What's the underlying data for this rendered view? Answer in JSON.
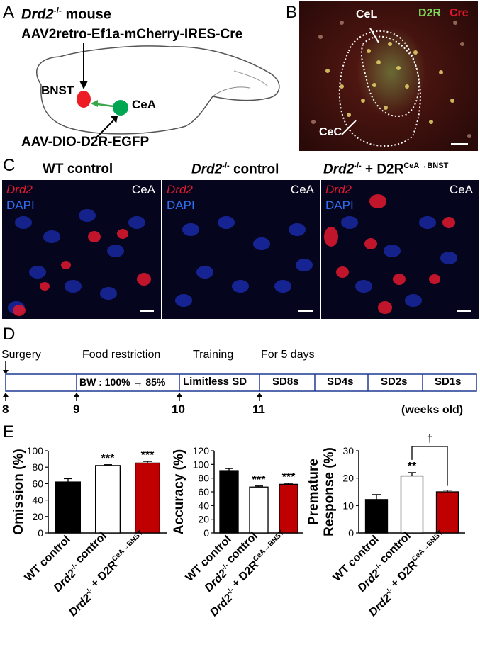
{
  "panels": {
    "A": "A",
    "B": "B",
    "C": "C",
    "D": "D",
    "E": "E"
  },
  "panelA": {
    "genotype": "Drd2",
    "genotype_sup": "-/-",
    "genotype_suffix": " mouse",
    "virus_top": "AAV2retro-Ef1a-mCherry-IRES-Cre",
    "bnst": "BNST",
    "cea": "CeA",
    "virus_bottom": "AAV-DIO-D2R-EGFP"
  },
  "panelB": {
    "label_d2r": "D2R",
    "label_cre": "Cre",
    "cel": "CeL",
    "cec": "CeC",
    "colors": {
      "d2r": "#7ed957",
      "cre": "#e2182e"
    }
  },
  "panelC": {
    "groups": [
      {
        "title_italic": "",
        "title_plain": "WT control",
        "title_sup": ""
      },
      {
        "title_italic": "Drd2",
        "title_sup": "-/-",
        "title_plain": " control"
      },
      {
        "title_italic": "Drd2",
        "title_sup": "-/-",
        "title_plain": " + D2R",
        "title_sup2": "CeA→BNST"
      }
    ],
    "stain1": "Drd2",
    "stain2": "DAPI",
    "region": "CeA",
    "colors": {
      "drd2": "#e2182e",
      "dapi": "#2f6ff0"
    }
  },
  "panelD": {
    "surgery": "Surgery",
    "food_restriction": "Food restriction",
    "training": "Training",
    "for_5_days": "For 5 days",
    "bw": "BW : 100% → 85%",
    "limitless": "Limitless SD",
    "stages": [
      "SD8s",
      "SD4s",
      "SD2s",
      "SD1s"
    ],
    "weeks": [
      "8",
      "9",
      "10",
      "11"
    ],
    "weeks_label": "(weeks old)",
    "border_color": "#1f3a93"
  },
  "panelE": {
    "groups": [
      "WT control",
      "Drd2-/- control",
      "Drd2-/- + D2R CeA→BNST"
    ],
    "group_labels": [
      {
        "italic": "",
        "sup": "",
        "plain": "WT control",
        "sup2": ""
      },
      {
        "italic": "Drd2",
        "sup": "-/-",
        "plain": " control",
        "sup2": ""
      },
      {
        "italic": "Drd2",
        "sup": "-/-",
        "plain": " + D2R",
        "sup2": "CeA→BNST"
      }
    ],
    "bar_colors": [
      "#000000",
      "#ffffff",
      "#c00000"
    ]
  },
  "chart_data": [
    {
      "type": "bar",
      "categories": [
        "WT control",
        "Drd2-/- control",
        "Drd2-/- + D2R CeA→BNST"
      ],
      "values": [
        62,
        82,
        85
      ],
      "errors": [
        4,
        1,
        2
      ],
      "significance": [
        "",
        "***",
        "***"
      ],
      "ylabel": "Omission (%)",
      "ylim": [
        0,
        100
      ],
      "yticks": [
        0,
        20,
        40,
        60,
        80,
        100
      ]
    },
    {
      "type": "bar",
      "categories": [
        "WT control",
        "Drd2-/- control",
        "Drd2-/- + D2R CeA→BNST"
      ],
      "values": [
        91,
        67,
        71
      ],
      "errors": [
        3,
        1.5,
        1.5
      ],
      "significance": [
        "",
        "***",
        "***"
      ],
      "ylabel": "Accuracy (%)",
      "ylim": [
        0,
        120
      ],
      "yticks": [
        0,
        20,
        40,
        60,
        80,
        100,
        120
      ]
    },
    {
      "type": "bar",
      "categories": [
        "WT control",
        "Drd2-/- control",
        "Drd2-/- + D2R CeA→BNST"
      ],
      "values": [
        12.2,
        20.8,
        15.0
      ],
      "errors": [
        1.8,
        1.2,
        0.6
      ],
      "significance": [
        "",
        "**",
        ""
      ],
      "bracket": {
        "from": 1,
        "to": 2,
        "label": "†"
      },
      "ylabel": "Premature Response (%)",
      "ylabel_lines": [
        "Premature",
        "Response (%)"
      ],
      "ylim": [
        0,
        30
      ],
      "yticks": [
        0,
        10,
        20,
        30
      ]
    }
  ]
}
